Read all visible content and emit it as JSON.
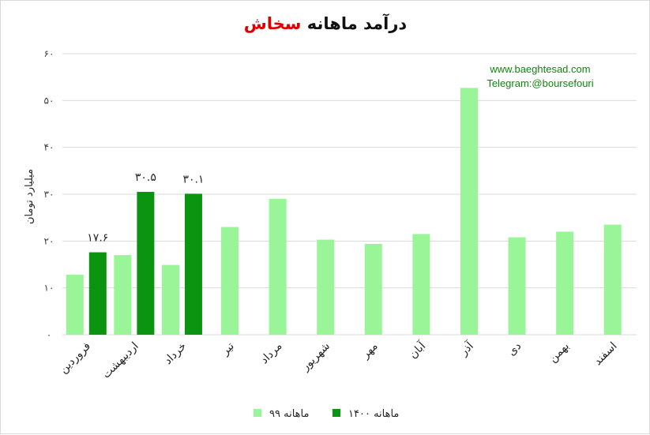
{
  "chart_data": {
    "type": "bar",
    "title_main": "درآمد ماهانه",
    "title_highlight": "سخاش",
    "title_highlight_color": "#e00000",
    "ylabel": "میلیارد تومان",
    "ylim": [
      0,
      60
    ],
    "y_ticks": [
      0,
      10,
      20,
      30,
      40,
      50,
      60
    ],
    "y_tick_labels": [
      "۰",
      "۱۰",
      "۲۰",
      "۳۰",
      "۴۰",
      "۵۰",
      "۶۰"
    ],
    "grid": true,
    "legend_position": "bottom",
    "categories": [
      "فروردین",
      "اردیبهشت",
      "خرداد",
      "تیر",
      "مرداد",
      "شهریور",
      "مهر",
      "آبان",
      "آذر",
      "دی",
      "بهمن",
      "اسفند"
    ],
    "series": [
      {
        "name": "ماهانه ۹۹",
        "color": "#99f597",
        "values": [
          12.8,
          17.0,
          14.9,
          23.0,
          29.0,
          20.3,
          19.4,
          21.5,
          52.7,
          20.8,
          22.0,
          23.5
        ]
      },
      {
        "name": "ماهانه ۱۴۰۰",
        "color": "#0a9410",
        "values": [
          17.6,
          30.5,
          30.1,
          null,
          null,
          null,
          null,
          null,
          null,
          null,
          null,
          null
        ],
        "data_labels": [
          "۱۷.۶",
          "۳۰.۵",
          "۳۰.۱"
        ]
      }
    ],
    "watermark": [
      "www.baeghtesad.com",
      "Telegram:@boursefouri"
    ]
  }
}
